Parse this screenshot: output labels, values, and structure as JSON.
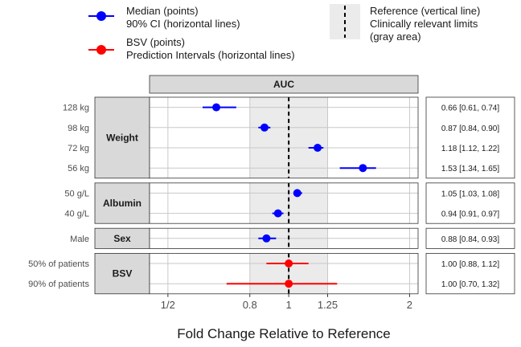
{
  "chart_data": {
    "type": "scatter",
    "title": "AUC",
    "xlabel": "Fold Change Relative to Reference",
    "x_scale": "log",
    "xlim": [
      0.45,
      2.1
    ],
    "x_ticks": [
      {
        "value": 0.5,
        "label": "1/2"
      },
      {
        "value": 0.8,
        "label": "0.8"
      },
      {
        "value": 1.0,
        "label": "1"
      },
      {
        "value": 1.25,
        "label": "1.25"
      },
      {
        "value": 2.0,
        "label": "2"
      }
    ],
    "reference_line": 1.0,
    "clinical_limits": [
      0.8,
      1.25
    ],
    "legend": {
      "median_label_1": "Median (points)",
      "median_label_2": "90% CI (horizontal lines)",
      "bsv_label_1": "BSV (points)",
      "bsv_label_2": "Prediction Intervals (horizontal lines)",
      "ref_label_1": "Reference (vertical line)",
      "ref_label_2": "Clinically relevant limits",
      "ref_label_3": "(gray area)"
    },
    "colors": {
      "median": "#0000ff",
      "bsv": "#ff0000",
      "reference_area": "#ebebeb",
      "strip": "#d9d9d9"
    },
    "groups": [
      {
        "name": "Weight",
        "rows": [
          {
            "label": "128 kg",
            "median": 0.66,
            "low": 0.61,
            "high": 0.74,
            "text": "0.66 [0.61, 0.74]",
            "kind": "median"
          },
          {
            "label": "98 kg",
            "median": 0.87,
            "low": 0.84,
            "high": 0.9,
            "text": "0.87 [0.84, 0.90]",
            "kind": "median"
          },
          {
            "label": "72 kg",
            "median": 1.18,
            "low": 1.12,
            "high": 1.22,
            "text": "1.18 [1.12, 1.22]",
            "kind": "median"
          },
          {
            "label": "56 kg",
            "median": 1.53,
            "low": 1.34,
            "high": 1.65,
            "text": "1.53 [1.34, 1.65]",
            "kind": "median"
          }
        ]
      },
      {
        "name": "Albumin",
        "rows": [
          {
            "label": "50 g/L",
            "median": 1.05,
            "low": 1.03,
            "high": 1.08,
            "text": "1.05 [1.03, 1.08]",
            "kind": "median"
          },
          {
            "label": "40 g/L",
            "median": 0.94,
            "low": 0.91,
            "high": 0.97,
            "text": "0.94 [0.91, 0.97]",
            "kind": "median"
          }
        ]
      },
      {
        "name": "Sex",
        "rows": [
          {
            "label": "Male",
            "median": 0.88,
            "low": 0.84,
            "high": 0.93,
            "text": "0.88 [0.84, 0.93]",
            "kind": "median"
          }
        ]
      },
      {
        "name": "BSV",
        "rows": [
          {
            "label": "50% of patients",
            "median": 1.0,
            "low": 0.88,
            "high": 1.12,
            "text": "1.00 [0.88, 1.12]",
            "kind": "bsv"
          },
          {
            "label": "90% of patients",
            "median": 1.0,
            "low": 0.7,
            "high": 1.32,
            "text": "1.00 [0.70, 1.32]",
            "kind": "bsv"
          }
        ]
      }
    ]
  }
}
